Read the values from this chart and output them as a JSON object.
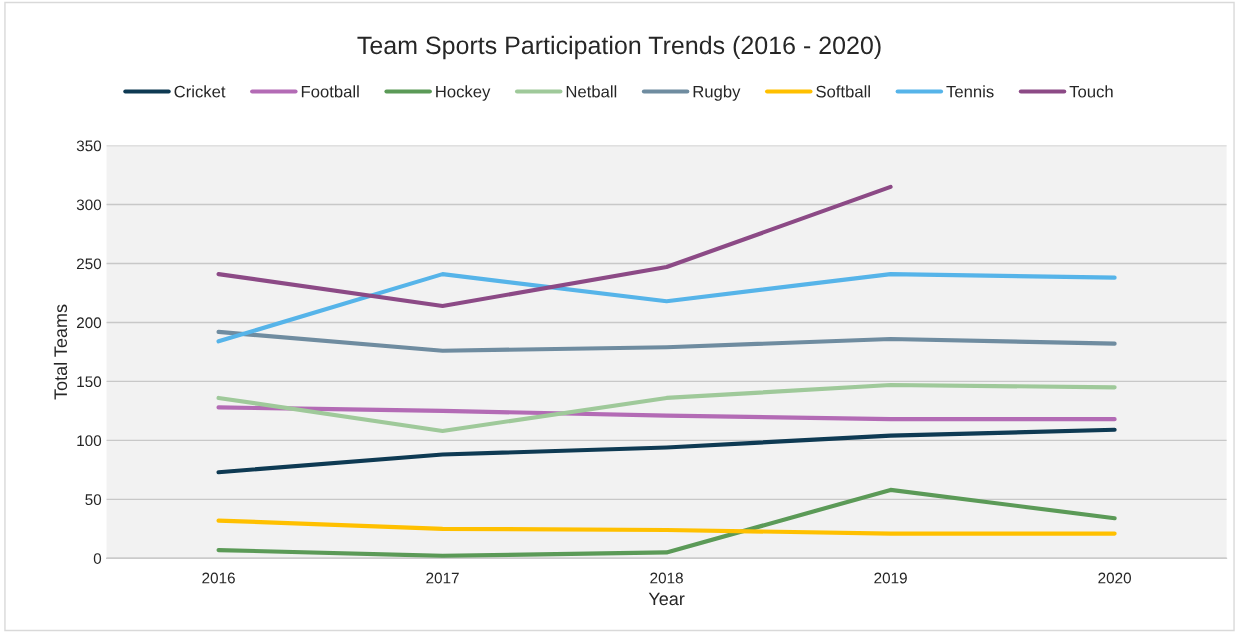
{
  "chart_data": {
    "type": "line",
    "title": "Team Sports Participation Trends (2016 - 2020)",
    "xlabel": "Year",
    "ylabel": "Total Teams",
    "categories": [
      "2016",
      "2017",
      "2018",
      "2019",
      "2020"
    ],
    "series": [
      {
        "name": "Cricket",
        "color": "#0e3a53",
        "values": [
          73,
          88,
          94,
          104,
          109
        ]
      },
      {
        "name": "Football",
        "color": "#b36bb5",
        "values": [
          128,
          125,
          121,
          118,
          118
        ]
      },
      {
        "name": "Hockey",
        "color": "#5b9a57",
        "values": [
          7,
          2,
          5,
          58,
          34
        ]
      },
      {
        "name": "Netball",
        "color": "#9fc99a",
        "values": [
          136,
          108,
          136,
          147,
          145
        ]
      },
      {
        "name": "Rugby",
        "color": "#6f8ca0",
        "values": [
          192,
          176,
          179,
          186,
          182
        ]
      },
      {
        "name": "Softball",
        "color": "#ffc000",
        "values": [
          32,
          25,
          24,
          21,
          21
        ]
      },
      {
        "name": "Tennis",
        "color": "#56b4e9",
        "values": [
          184,
          241,
          218,
          241,
          238
        ]
      },
      {
        "name": "Touch",
        "color": "#8c4a86",
        "values": [
          241,
          214,
          247,
          315,
          null
        ]
      }
    ],
    "ylim": [
      0,
      350
    ],
    "yticks": [
      0,
      50,
      100,
      150,
      200,
      250,
      300,
      350
    ],
    "grid": "y",
    "legend": "top",
    "line_style": "solid",
    "marker": "none"
  }
}
